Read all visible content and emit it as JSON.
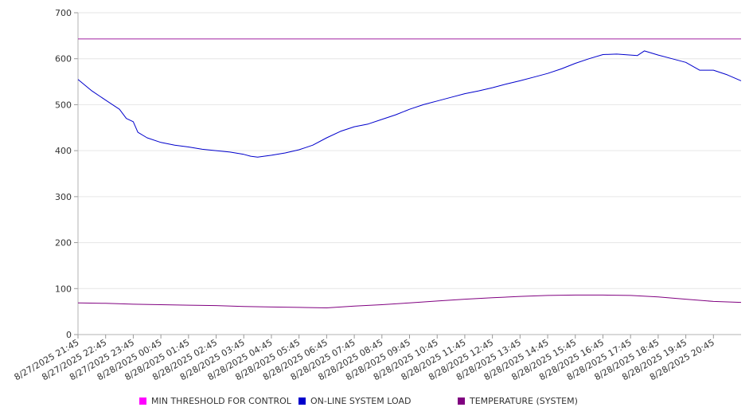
{
  "chart_data": {
    "type": "line",
    "title": "",
    "xlabel": "",
    "ylabel": "",
    "ylim": [
      0,
      700
    ],
    "yticks": [
      "0",
      "100",
      "200",
      "300",
      "400",
      "500",
      "600",
      "700"
    ],
    "xticks": [
      "8/27/2025 21:45",
      "8/27/2025 22:45",
      "8/27/2025 23:45",
      "8/28/2025 00:45",
      "8/28/2025 01:45",
      "8/28/2025 02:45",
      "8/28/2025 03:45",
      "8/28/2025 04:45",
      "8/28/2025 05:45",
      "8/28/2025 06:45",
      "8/28/2025 07:45",
      "8/28/2025 08:45",
      "8/28/2025 09:45",
      "8/28/2025 10:45",
      "8/28/2025 11:45",
      "8/28/2025 12:45",
      "8/28/2025 13:45",
      "8/28/2025 14:45",
      "8/28/2025 15:45",
      "8/28/2025 16:45",
      "8/28/2025 17:45",
      "8/28/2025 18:45",
      "8/28/2025 19:45",
      "8/28/2025 20:45"
    ],
    "x_end": "8/28/2025 21:45",
    "grid": true,
    "legend_position": "bottom",
    "series": [
      {
        "name": "MIN THRESHOLD FOR CONTROL",
        "color": "#ff00ff",
        "line_color": "#a020a0",
        "x": [
          "8/27/2025 21:45",
          "8/28/2025 21:45"
        ],
        "values": [
          643,
          643
        ]
      },
      {
        "name": "ON-LINE SYSTEM LOAD",
        "color": "#0000cc",
        "x": [
          "8/27/2025 21:45",
          "8/27/2025 22:15",
          "8/27/2025 22:45",
          "8/27/2025 23:15",
          "8/27/2025 23:30",
          "8/27/2025 23:45",
          "8/27/2025 23:55",
          "8/28/2025 00:15",
          "8/28/2025 00:45",
          "8/28/2025 01:15",
          "8/28/2025 01:45",
          "8/28/2025 02:15",
          "8/28/2025 02:45",
          "8/28/2025 03:15",
          "8/28/2025 03:45",
          "8/28/2025 04:00",
          "8/28/2025 04:15",
          "8/28/2025 04:45",
          "8/28/2025 05:15",
          "8/28/2025 05:45",
          "8/28/2025 06:15",
          "8/28/2025 06:45",
          "8/28/2025 07:15",
          "8/28/2025 07:45",
          "8/28/2025 08:15",
          "8/28/2025 08:45",
          "8/28/2025 09:15",
          "8/28/2025 09:45",
          "8/28/2025 10:15",
          "8/28/2025 10:45",
          "8/28/2025 11:15",
          "8/28/2025 11:45",
          "8/28/2025 12:15",
          "8/28/2025 12:45",
          "8/28/2025 13:15",
          "8/28/2025 13:45",
          "8/28/2025 14:15",
          "8/28/2025 14:45",
          "8/28/2025 15:15",
          "8/28/2025 15:45",
          "8/28/2025 16:15",
          "8/28/2025 16:45",
          "8/28/2025 17:15",
          "8/28/2025 17:45",
          "8/28/2025 18:00",
          "8/28/2025 18:15",
          "8/28/2025 18:45",
          "8/28/2025 19:15",
          "8/28/2025 19:45",
          "8/28/2025 20:15",
          "8/28/2025 20:45",
          "8/28/2025 21:15",
          "8/28/2025 21:45"
        ],
        "values": [
          555,
          530,
          510,
          490,
          470,
          463,
          440,
          428,
          418,
          412,
          408,
          403,
          400,
          397,
          392,
          388,
          386,
          390,
          395,
          402,
          412,
          428,
          442,
          452,
          458,
          468,
          478,
          490,
          500,
          508,
          516,
          524,
          530,
          537,
          545,
          552,
          560,
          568,
          578,
          590,
          600,
          609,
          610,
          608,
          607,
          617,
          608,
          600,
          592,
          575,
          575,
          565,
          552
        ]
      },
      {
        "name": "TEMPERATURE (SYSTEM)",
        "color": "#800080",
        "x": [
          "8/27/2025 21:45",
          "8/27/2025 22:45",
          "8/27/2025 23:45",
          "8/28/2025 00:45",
          "8/28/2025 01:45",
          "8/28/2025 02:45",
          "8/28/2025 03:45",
          "8/28/2025 04:45",
          "8/28/2025 05:45",
          "8/28/2025 06:45",
          "8/28/2025 07:45",
          "8/28/2025 08:45",
          "8/28/2025 09:45",
          "8/28/2025 10:45",
          "8/28/2025 11:45",
          "8/28/2025 12:45",
          "8/28/2025 13:45",
          "8/28/2025 14:45",
          "8/28/2025 15:45",
          "8/28/2025 16:45",
          "8/28/2025 17:45",
          "8/28/2025 18:45",
          "8/28/2025 19:45",
          "8/28/2025 20:45",
          "8/28/2025 21:45"
        ],
        "values": [
          69,
          68,
          66,
          65,
          64,
          63,
          61,
          60,
          59,
          58,
          62,
          65,
          69,
          73,
          77,
          80,
          83,
          85,
          86,
          86,
          85,
          82,
          77,
          72,
          70
        ]
      }
    ]
  }
}
